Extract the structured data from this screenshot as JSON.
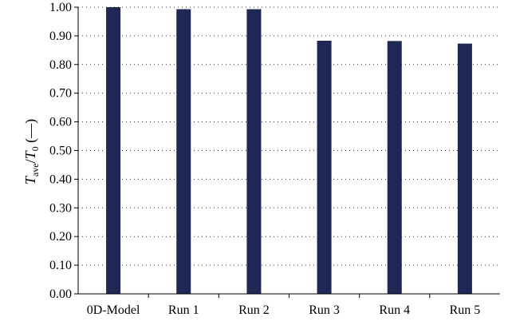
{
  "chart_data": {
    "type": "bar",
    "categories": [
      "0D-Model",
      "Run 1",
      "Run 2",
      "Run 3",
      "Run 4",
      "Run 5"
    ],
    "values": [
      1.0,
      0.993,
      0.993,
      0.883,
      0.882,
      0.873
    ],
    "y_ticks": [
      "0.00",
      "0.10",
      "0.20",
      "0.30",
      "0.40",
      "0.50",
      "0.60",
      "0.70",
      "0.80",
      "0.90",
      "1.00"
    ],
    "ylim": [
      0,
      1.0
    ],
    "ylabel": {
      "base": "T",
      "base_sub": "ave",
      "sep": "/",
      "ref": "T",
      "ref_sub": "0",
      "unit": " (—)"
    },
    "grid": "horizontal-dotted",
    "bar_color": "#1f2755"
  }
}
